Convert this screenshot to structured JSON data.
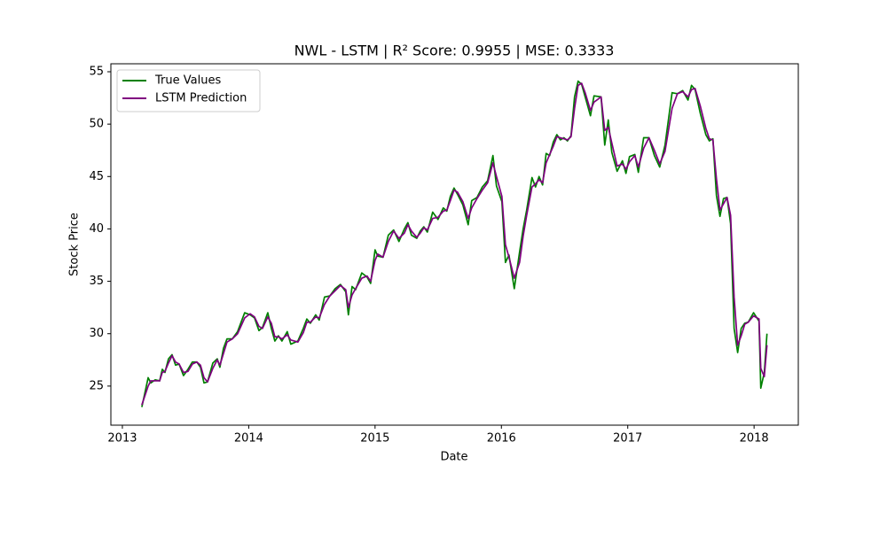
{
  "chart_data": {
    "type": "line",
    "title": "NWL - LSTM | R² Score: 0.9955 | MSE: 0.3333",
    "x_label": "Date",
    "y_label": "Stock Price",
    "x": [
      2013.154,
      2013.204,
      2013.225,
      2013.26,
      2013.295,
      2013.316,
      2013.337,
      2013.365,
      2013.393,
      2013.421,
      2013.449,
      2013.484,
      2013.519,
      2013.554,
      2013.589,
      2013.618,
      2013.646,
      2013.674,
      2013.716,
      2013.751,
      2013.772,
      2013.8,
      2013.828,
      2013.87,
      2013.912,
      2013.968,
      2014.011,
      2014.046,
      2014.081,
      2014.109,
      2014.151,
      2014.179,
      2014.207,
      2014.235,
      2014.263,
      2014.305,
      2014.333,
      2014.389,
      2014.432,
      2014.46,
      2014.488,
      2014.53,
      2014.558,
      2014.6,
      2014.642,
      2014.684,
      2014.726,
      2014.768,
      2014.789,
      2014.818,
      2014.846,
      2014.895,
      2014.937,
      2014.965,
      2015.0,
      2015.021,
      2015.063,
      2015.105,
      2015.147,
      2015.189,
      2015.232,
      2015.26,
      2015.288,
      2015.33,
      2015.358,
      2015.386,
      2015.414,
      2015.456,
      2015.498,
      2015.54,
      2015.568,
      2015.596,
      2015.625,
      2015.653,
      2015.695,
      2015.737,
      2015.765,
      2015.807,
      2015.849,
      2015.891,
      2015.933,
      2015.961,
      2016.004,
      2016.032,
      2016.06,
      2016.102,
      2016.144,
      2016.172,
      2016.2,
      2016.242,
      2016.27,
      2016.298,
      2016.326,
      2016.354,
      2016.382,
      2016.411,
      2016.439,
      2016.467,
      2016.495,
      2016.523,
      2016.551,
      2016.579,
      2016.607,
      2016.635,
      2016.663,
      2016.705,
      2016.733,
      2016.789,
      2016.818,
      2016.846,
      2016.874,
      2016.916,
      2016.958,
      2016.986,
      2017.014,
      2017.056,
      2017.084,
      2017.126,
      2017.168,
      2017.211,
      2017.253,
      2017.295,
      2017.351,
      2017.393,
      2017.435,
      2017.477,
      2017.505,
      2017.533,
      2017.575,
      2017.618,
      2017.646,
      2017.674,
      2017.702,
      2017.73,
      2017.758,
      2017.786,
      2017.814,
      2017.842,
      2017.87,
      2017.898,
      2017.926,
      2017.954,
      2017.996,
      2018.039,
      2018.053,
      2018.081,
      2018.102
    ],
    "series": [
      {
        "name": "True Values",
        "color": "#008000",
        "values": [
          23.0,
          25.8,
          25.3,
          25.6,
          25.5,
          26.6,
          26.3,
          27.6,
          28.0,
          27.0,
          27.1,
          26.0,
          26.6,
          27.3,
          27.3,
          26.8,
          25.3,
          25.4,
          27.2,
          27.6,
          26.8,
          28.6,
          29.5,
          29.5,
          30.2,
          32.0,
          31.8,
          31.5,
          30.3,
          30.6,
          32.0,
          30.5,
          29.3,
          29.8,
          29.3,
          30.2,
          29.0,
          29.3,
          30.5,
          31.4,
          31.0,
          31.8,
          31.3,
          33.5,
          33.6,
          34.3,
          34.7,
          34.0,
          31.8,
          34.5,
          34.2,
          35.8,
          35.4,
          34.8,
          38.0,
          37.4,
          37.3,
          39.4,
          39.9,
          38.8,
          40.0,
          40.6,
          39.4,
          39.1,
          39.8,
          40.2,
          39.7,
          41.6,
          40.9,
          42.0,
          41.7,
          43.1,
          43.9,
          43.3,
          42.3,
          40.4,
          42.7,
          43.0,
          44.0,
          44.6,
          47.0,
          44.1,
          42.6,
          36.8,
          37.5,
          34.3,
          37.8,
          40.0,
          41.8,
          44.9,
          44.0,
          45.0,
          44.2,
          47.2,
          47.0,
          48.3,
          49.0,
          48.5,
          48.7,
          48.4,
          48.9,
          52.6,
          54.1,
          53.8,
          52.6,
          50.8,
          52.7,
          52.6,
          48.0,
          50.4,
          47.3,
          45.5,
          46.5,
          45.3,
          46.9,
          47.1,
          45.4,
          48.7,
          48.7,
          47.0,
          45.9,
          48.0,
          53.0,
          52.9,
          53.2,
          52.3,
          53.7,
          53.3,
          51.0,
          49.0,
          48.4,
          48.6,
          43.2,
          41.2,
          42.9,
          43.0,
          40.5,
          30.5,
          28.2,
          30.5,
          31.0,
          31.1,
          32.0,
          31.2,
          24.8,
          26.3,
          30.0
        ]
      },
      {
        "name": "LSTM Prediction",
        "color": "#800080",
        "values": [
          23.2,
          25.0,
          25.5,
          25.5,
          25.5,
          26.3,
          26.4,
          27.2,
          27.9,
          27.3,
          27.1,
          26.3,
          26.4,
          27.1,
          27.3,
          27.0,
          25.8,
          25.4,
          26.7,
          27.5,
          27.0,
          28.1,
          29.2,
          29.5,
          30.0,
          31.5,
          31.9,
          31.6,
          30.7,
          30.5,
          31.6,
          31.0,
          29.7,
          29.7,
          29.5,
          29.9,
          29.4,
          29.2,
          30.1,
          31.1,
          31.1,
          31.6,
          31.5,
          32.8,
          33.6,
          34.1,
          34.6,
          34.2,
          32.5,
          33.7,
          34.3,
          35.3,
          35.5,
          35.0,
          37.0,
          37.6,
          37.3,
          38.8,
          39.8,
          39.1,
          39.6,
          40.4,
          39.8,
          39.2,
          39.6,
          40.1,
          39.9,
          41.0,
          41.1,
          41.7,
          41.8,
          42.7,
          43.7,
          43.5,
          42.6,
          41.0,
          42.0,
          42.9,
          43.7,
          44.4,
          46.3,
          45.0,
          43.1,
          38.5,
          37.3,
          35.3,
          36.8,
          39.3,
          41.3,
          44.0,
          44.3,
          44.7,
          44.4,
          46.3,
          47.1,
          47.9,
          48.8,
          48.7,
          48.6,
          48.5,
          48.8,
          51.5,
          53.7,
          53.9,
          53.0,
          51.3,
          52.1,
          52.6,
          49.4,
          49.7,
          48.2,
          46.0,
          46.2,
          45.7,
          46.4,
          47.0,
          45.9,
          47.7,
          48.7,
          47.5,
          46.2,
          47.4,
          51.5,
          52.9,
          53.1,
          52.6,
          53.3,
          53.4,
          51.7,
          49.6,
          48.6,
          48.5,
          44.8,
          41.8,
          42.4,
          43.0,
          41.3,
          33.5,
          28.9,
          29.8,
          30.9,
          31.1,
          31.7,
          31.4,
          26.7,
          25.9,
          28.9
        ]
      }
    ],
    "xlim": [
      2012.909,
      2018.35
    ],
    "xticks": [
      2013,
      2014,
      2015,
      2016,
      2017,
      2018
    ],
    "ylim": [
      21.27,
      55.76
    ],
    "yticks": [
      25,
      30,
      35,
      40,
      45,
      50,
      55
    ],
    "legend": "upper left"
  }
}
